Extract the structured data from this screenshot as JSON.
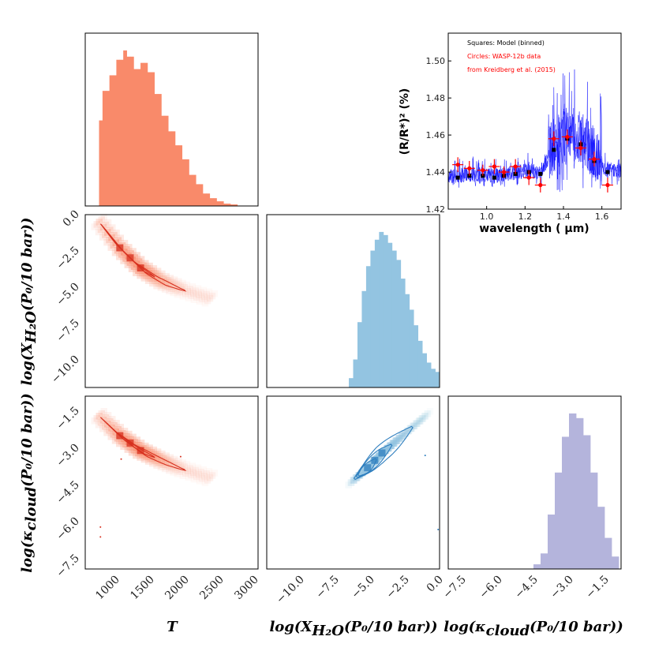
{
  "chart_data": [
    {
      "panel": "hist-T",
      "type": "bar",
      "xlim": [
        500,
        3000
      ],
      "bins": [
        700,
        750,
        800,
        850,
        900,
        950,
        1000,
        1050,
        1100,
        1150,
        1200,
        1250,
        1300,
        1350,
        1400,
        1450,
        1500,
        1550,
        1600,
        1650,
        1700,
        1750,
        1800,
        1850,
        1900,
        1950,
        2000,
        2050,
        2100,
        2150,
        2200,
        2250,
        2300,
        2350,
        2400,
        2450,
        2500,
        2550,
        2600,
        2650,
        2700
      ],
      "counts": [
        0.55,
        0.74,
        0.74,
        0.84,
        0.84,
        0.94,
        0.94,
        1.0,
        0.96,
        0.96,
        0.88,
        0.88,
        0.92,
        0.92,
        0.86,
        0.86,
        0.72,
        0.72,
        0.58,
        0.58,
        0.48,
        0.48,
        0.39,
        0.39,
        0.3,
        0.3,
        0.2,
        0.2,
        0.14,
        0.14,
        0.08,
        0.08,
        0.05,
        0.05,
        0.03,
        0.03,
        0.015,
        0.015,
        0.01,
        0.01
      ],
      "color": "#f98a6a"
    },
    {
      "panel": "hist-H2O",
      "type": "bar",
      "xlim": [
        -12,
        0
      ],
      "bins": [
        -6.3,
        -6.0,
        -5.7,
        -5.4,
        -5.1,
        -4.8,
        -4.5,
        -4.2,
        -3.9,
        -3.6,
        -3.3,
        -3.0,
        -2.7,
        -2.4,
        -2.1,
        -1.8,
        -1.5,
        -1.2,
        -0.9,
        -0.6,
        -0.3,
        0
      ],
      "counts": [
        0.06,
        0.18,
        0.42,
        0.62,
        0.78,
        0.88,
        0.95,
        1.0,
        0.98,
        0.93,
        0.88,
        0.82,
        0.7,
        0.6,
        0.5,
        0.4,
        0.3,
        0.22,
        0.16,
        0.12,
        0.1
      ],
      "color": "#93c4e1"
    },
    {
      "panel": "hist-cloud",
      "type": "bar",
      "xlim": [
        -8.5,
        -1.2
      ],
      "bins": [
        -4.9,
        -4.6,
        -4.3,
        -4.0,
        -3.7,
        -3.4,
        -3.1,
        -2.8,
        -2.5,
        -2.2,
        -1.9,
        -1.6,
        -1.3
      ],
      "counts": [
        0.03,
        0.1,
        0.35,
        0.62,
        0.85,
        1.0,
        0.97,
        0.86,
        0.62,
        0.4,
        0.2,
        0.08
      ],
      "color": "#b4b4dc"
    },
    {
      "panel": "spectrum",
      "type": "scatter",
      "title": "",
      "xlabel": "wavelength ( μm)",
      "ylabel": "(R/R*)² (%)",
      "xlim": [
        0.8,
        1.7
      ],
      "ylim": [
        1.42,
        1.515
      ],
      "xticks": [
        "1.0",
        "1.2",
        "1.4",
        "1.6"
      ],
      "yticks": [
        "1.42",
        "1.44",
        "1.46",
        "1.48",
        "1.50"
      ],
      "legend": {
        "line1": "Squares: Model (binned)",
        "line2": "Circles: WASP-12b data",
        "line3": "from Kreidberg et al. (2015)"
      },
      "data_x": [
        0.85,
        0.91,
        0.98,
        1.04,
        1.09,
        1.15,
        1.22,
        1.28,
        1.35,
        1.42,
        1.49,
        1.56,
        1.63
      ],
      "data_y": [
        1.444,
        1.442,
        1.441,
        1.443,
        1.44,
        1.443,
        1.437,
        1.433,
        1.458,
        1.459,
        1.453,
        1.447,
        1.433
      ],
      "data_err": [
        0.004,
        0.004,
        0.003,
        0.004,
        0.003,
        0.004,
        0.004,
        0.004,
        0.004,
        0.004,
        0.004,
        0.004,
        0.004
      ],
      "model_x": [
        0.85,
        0.91,
        0.98,
        1.04,
        1.09,
        1.15,
        1.22,
        1.28,
        1.35,
        1.42,
        1.49,
        1.56,
        1.63
      ],
      "model_y": [
        1.437,
        1.438,
        1.438,
        1.437,
        1.438,
        1.439,
        1.44,
        1.439,
        1.452,
        1.458,
        1.455,
        1.446,
        1.44
      ]
    },
    {
      "panel": "joint-T-H2O",
      "type": "heatmap",
      "xlim": [
        500,
        3000
      ],
      "ylim": [
        -12,
        0
      ],
      "ridge": [
        [
          700,
          -0.5
        ],
        [
          1000,
          -2.3
        ],
        [
          1300,
          -3.7
        ],
        [
          1600,
          -4.6
        ],
        [
          1900,
          -5.2
        ],
        [
          2300,
          -5.8
        ]
      ]
    },
    {
      "panel": "joint-T-cloud",
      "type": "heatmap",
      "xlim": [
        500,
        3000
      ],
      "ylim": [
        -8.0,
        -1.0
      ],
      "ridge": [
        [
          700,
          -1.8
        ],
        [
          1000,
          -2.6
        ],
        [
          1300,
          -3.2
        ],
        [
          1600,
          -3.6
        ],
        [
          1900,
          -3.95
        ],
        [
          2300,
          -4.3
        ]
      ],
      "outliers": [
        [
          1880,
          -3.45
        ],
        [
          1020,
          -3.55
        ],
        [
          720,
          -6.3
        ],
        [
          720,
          -6.7
        ]
      ]
    },
    {
      "panel": "joint-H2O-cloud",
      "type": "heatmap",
      "xlim": [
        -12,
        0
      ],
      "ylim": [
        -8.0,
        -1.0
      ],
      "ridge": [
        [
          -6.0,
          -4.4
        ],
        [
          -5.0,
          -3.9
        ],
        [
          -4.0,
          -3.3
        ],
        [
          -3.0,
          -2.8
        ],
        [
          -2.0,
          -2.3
        ],
        [
          -1.0,
          -1.8
        ]
      ],
      "outliers": [
        [
          -1.0,
          -3.4
        ],
        [
          -0.1,
          -6.4
        ]
      ]
    }
  ],
  "axes": {
    "T": {
      "label": "T",
      "ticks": [
        "1000",
        "1500",
        "2000",
        "2500",
        "3000"
      ]
    },
    "H2O": {
      "label": "log(X",
      "label_sub": "H₂O",
      "label_tail": "(P₀/10 bar))",
      "yticks": [
        "0.0",
        "−2.5",
        "−5.0",
        "−7.5",
        "−10.0"
      ],
      "xticks": [
        "−10.0",
        "−7.5",
        "−5.0",
        "−2.5",
        "0.0"
      ]
    },
    "cloud": {
      "label": "log(κ",
      "label_sub": "cloud",
      "label_tail": "(P₀/10 bar))",
      "yticks": [
        "−1.5",
        "−3.0",
        "−4.5",
        "−6.0",
        "−7.5"
      ],
      "xticks": [
        "−7.5",
        "−6.0",
        "−4.5",
        "−3.0",
        "−1.5"
      ]
    }
  },
  "colors": {
    "red": "#f98a6a",
    "red_dark": "#d7301f",
    "blue": "#93c4e1",
    "blue_dark": "#2f7fbf",
    "purple": "#b4b4dc",
    "spectrum": "#0000ff",
    "data": "#ff0000",
    "model": "#000000"
  }
}
